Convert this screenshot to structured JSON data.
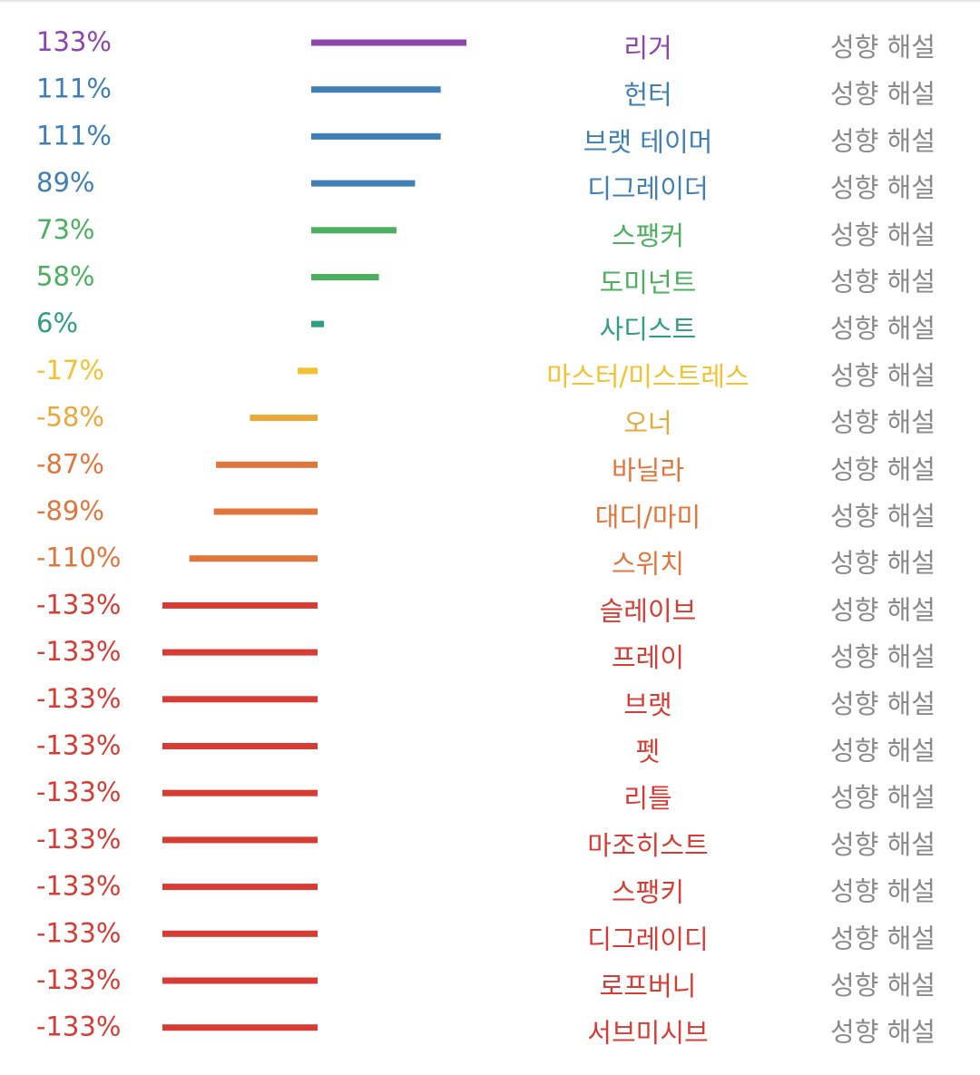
{
  "chart_data": {
    "type": "bar",
    "orientation": "horizontal",
    "grid": false,
    "legend": "none",
    "action_label": "성향 해설",
    "categories": [
      "리거",
      "헌터",
      "브랫 테이머",
      "디그레이더",
      "스팽커",
      "도미넌트",
      "사디스트",
      "마스터/미스트레스",
      "오너",
      "바닐라",
      "대디/마미",
      "스위치",
      "슬레이브",
      "프레이",
      "브랫",
      "펫",
      "리틀",
      "마조히스트",
      "스팽키",
      "디그레이디",
      "로프버니",
      "서브미시브"
    ],
    "values": [
      133,
      111,
      111,
      89,
      73,
      58,
      6,
      -17,
      -58,
      -87,
      -89,
      -110,
      -133,
      -133,
      -133,
      -133,
      -133,
      -133,
      -133,
      -133,
      -133,
      -133
    ],
    "labels": [
      "133%",
      "111%",
      "111%",
      "89%",
      "73%",
      "58%",
      "6%",
      "-17%",
      "-58%",
      "-87%",
      "-89%",
      "-110%",
      "-133%",
      "-133%",
      "-133%",
      "-133%",
      "-133%",
      "-133%",
      "-133%",
      "-133%",
      "-133%",
      "-133%"
    ],
    "colors": [
      "#8e44ad",
      "#3f7fb5",
      "#3f7fb5",
      "#3f7fb5",
      "#4caf5f",
      "#4caf5f",
      "#2e9e7e",
      "#f2c230",
      "#e9a93a",
      "#e0763c",
      "#e0763c",
      "#e0763c",
      "#d63b34",
      "#d63b34",
      "#d63b34",
      "#d63b34",
      "#d63b34",
      "#d63b34",
      "#d63b34",
      "#d63b34",
      "#d63b34",
      "#d63b34"
    ],
    "xlim": [
      -133,
      133
    ]
  }
}
